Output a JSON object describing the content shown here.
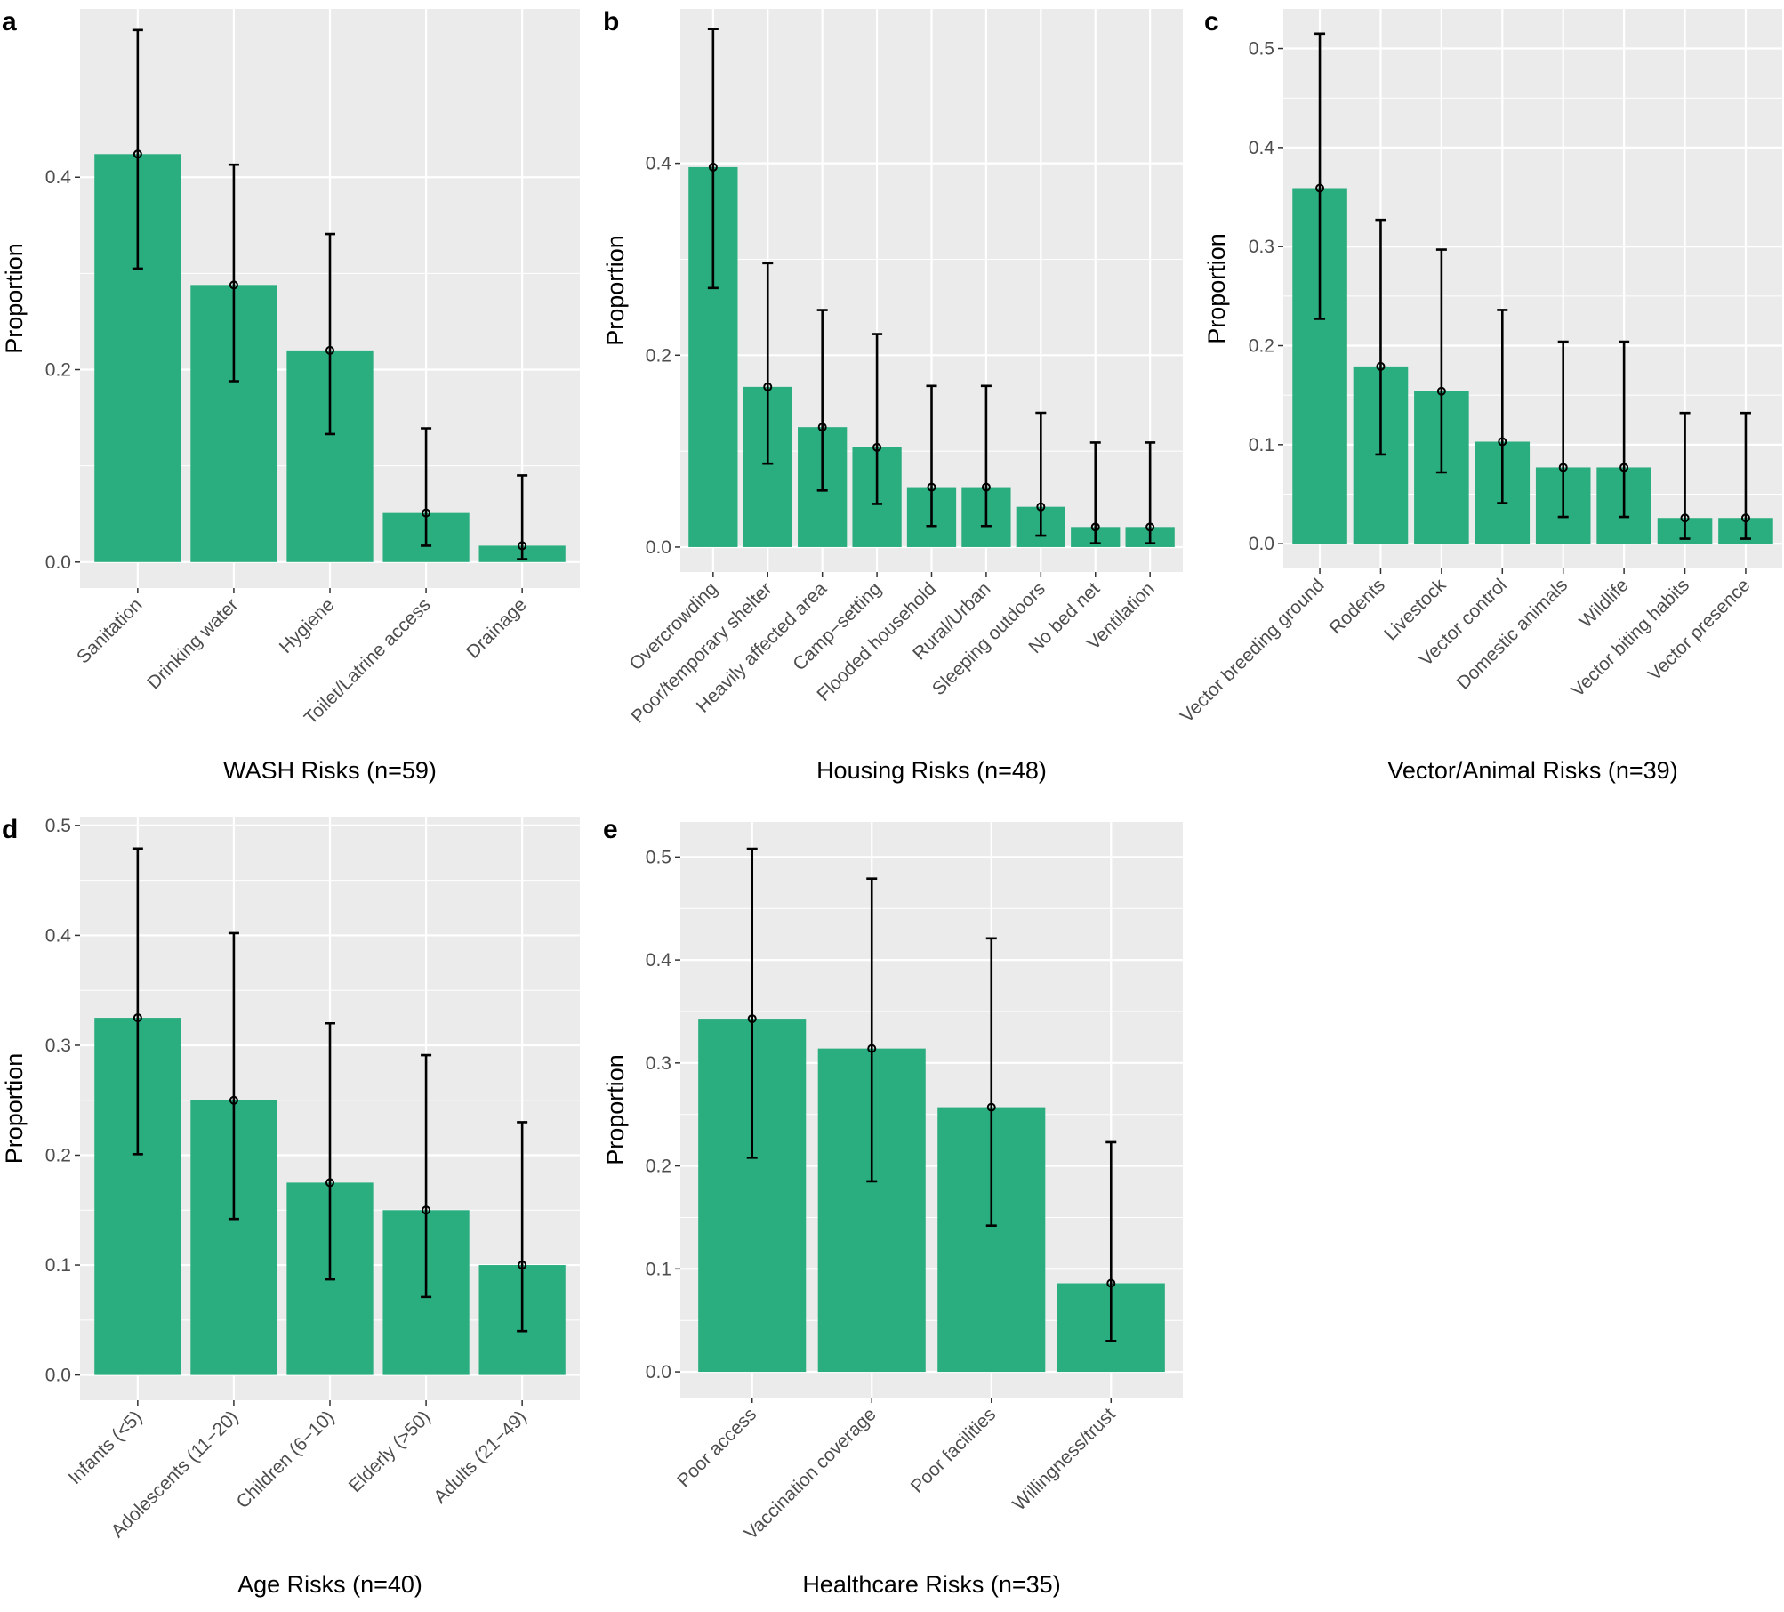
{
  "chart_data": [
    {
      "type": "bar",
      "tag": "a",
      "xlabel": "WASH Risks (n=59)",
      "ylabel": "Proportion",
      "categories": [
        "Sanitation",
        "Drinking water",
        "Hygiene",
        "Toilet/Latrine access",
        "Drainage"
      ],
      "values": [
        0.424,
        0.288,
        0.22,
        0.051,
        0.017
      ],
      "lower": [
        0.305,
        0.188,
        0.133,
        0.017,
        0.003
      ],
      "upper": [
        0.553,
        0.413,
        0.341,
        0.139,
        0.09
      ],
      "color": "#2bae7f",
      "ylim": [
        -0.027,
        0.575
      ],
      "yticks": [
        {
          "value": 0,
          "label": "0.0"
        },
        0.2,
        0.4
      ],
      "grid": true
    },
    {
      "type": "bar",
      "tag": "b",
      "xlabel": "Housing Risks (n=48)",
      "ylabel": "Proportion",
      "categories": [
        "Overcrowding",
        "Poor/temporary shelter",
        "Heavily affected area",
        "Camp−setting",
        "Flooded household",
        "Rural/Urban",
        "Sleeping outdoors",
        "No bed net",
        "Ventilation"
      ],
      "values": [
        0.396,
        0.167,
        0.125,
        0.104,
        0.0625,
        0.0625,
        0.042,
        0.021,
        0.021
      ],
      "lower": [
        0.27,
        0.087,
        0.059,
        0.045,
        0.022,
        0.022,
        0.012,
        0.004,
        0.004
      ],
      "upper": [
        0.54,
        0.296,
        0.247,
        0.222,
        0.168,
        0.168,
        0.14,
        0.109,
        0.109
      ],
      "color": "#2bae7f",
      "ylim": [
        -0.026,
        0.561
      ],
      "yticks": [
        {
          "value": 0,
          "label": "0.0"
        },
        0.2,
        0.4
      ],
      "grid": true
    },
    {
      "type": "bar",
      "tag": "c",
      "xlabel": "Vector/Animal Risks (n=39)",
      "ylabel": "Proportion",
      "categories": [
        "Vector breeding ground",
        "Rodents",
        "Livestock",
        "Vector control",
        "Domestic animals",
        "Wildlife",
        "Vector biting habits",
        "Vector presence"
      ],
      "values": [
        0.359,
        0.179,
        0.154,
        0.103,
        0.077,
        0.077,
        0.026,
        0.026
      ],
      "lower": [
        0.227,
        0.09,
        0.072,
        0.041,
        0.027,
        0.027,
        0.005,
        0.005
      ],
      "upper": [
        0.515,
        0.327,
        0.297,
        0.236,
        0.204,
        0.204,
        0.132,
        0.132
      ],
      "color": "#2bae7f",
      "ylim": [
        -0.025,
        0.54
      ],
      "yticks": [
        {
          "value": 0,
          "label": "0.0"
        },
        0.1,
        0.2,
        0.3,
        0.4,
        0.5
      ],
      "grid": true
    },
    {
      "type": "bar",
      "tag": "d",
      "xlabel": "Age Risks (n=40)",
      "ylabel": "Proportion",
      "categories": [
        "Infants (<5)",
        "Adolescents (11−20)",
        "Children (6−10)",
        "Elderly (>50)",
        "Adults (21−49)"
      ],
      "values": [
        0.325,
        0.25,
        0.175,
        0.15,
        0.1
      ],
      "lower": [
        0.201,
        0.142,
        0.087,
        0.071,
        0.04
      ],
      "upper": [
        0.479,
        0.402,
        0.32,
        0.291,
        0.23
      ],
      "color": "#2bae7f",
      "ylim": [
        -0.023,
        0.508
      ],
      "yticks": [
        {
          "value": 0,
          "label": "0.0"
        },
        0.1,
        0.2,
        0.3,
        0.4,
        0.5
      ],
      "grid": true
    },
    {
      "type": "bar",
      "tag": "e",
      "xlabel": "Healthcare Risks (n=35)",
      "ylabel": "Proportion",
      "categories": [
        "Poor access",
        "Vaccination coverage",
        "Poor facilities",
        "Willingness/trust"
      ],
      "values": [
        0.343,
        0.314,
        0.257,
        0.086
      ],
      "lower": [
        0.208,
        0.185,
        0.142,
        0.03
      ],
      "upper": [
        0.508,
        0.479,
        0.421,
        0.223
      ],
      "color": "#2bae7f",
      "ylim": [
        -0.025,
        0.534
      ],
      "yticks": [
        {
          "value": 0,
          "label": "0.0"
        },
        0.1,
        0.2,
        0.3,
        0.4,
        0.5
      ],
      "grid": true
    }
  ]
}
